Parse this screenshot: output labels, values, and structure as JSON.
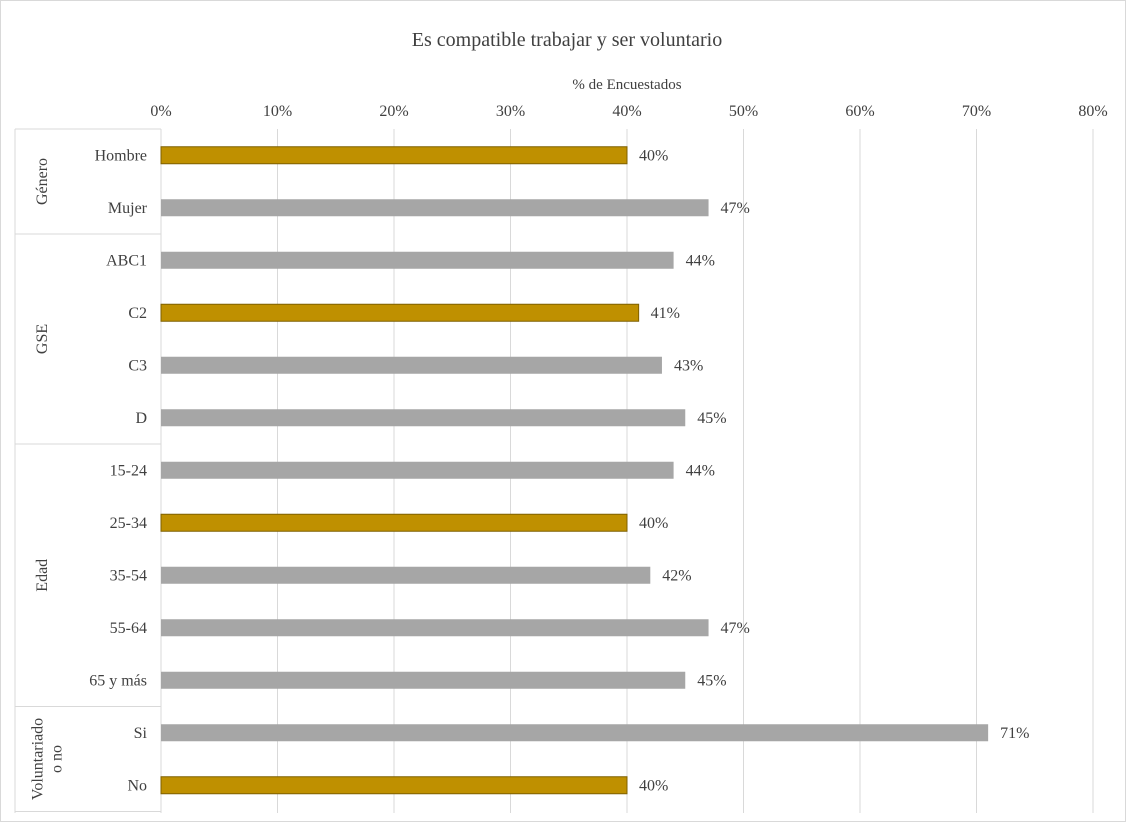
{
  "chart_data": {
    "type": "bar",
    "orientation": "horizontal",
    "title": "Es compatible trabajar y ser voluntario",
    "xlabel": "% de Encuestados",
    "xlim": [
      0,
      80
    ],
    "x_ticks": [
      "0%",
      "10%",
      "20%",
      "30%",
      "40%",
      "50%",
      "60%",
      "70%",
      "80%"
    ],
    "x_axis_position": "top",
    "grid": true,
    "legend": "none",
    "colors": {
      "highlight": "#bf9000",
      "default": "#a6a6a6"
    },
    "groups": [
      {
        "label": "Género",
        "items": [
          {
            "category": "Hombre",
            "value": 40,
            "label": "40%",
            "highlight": true
          },
          {
            "category": "Mujer",
            "value": 47,
            "label": "47%",
            "highlight": false
          }
        ]
      },
      {
        "label": "GSE",
        "items": [
          {
            "category": "ABC1",
            "value": 44,
            "label": "44%",
            "highlight": false
          },
          {
            "category": "C2",
            "value": 41,
            "label": "41%",
            "highlight": true
          },
          {
            "category": "C3",
            "value": 43,
            "label": "43%",
            "highlight": false
          },
          {
            "category": "D",
            "value": 45,
            "label": "45%",
            "highlight": false
          }
        ]
      },
      {
        "label": "Edad",
        "items": [
          {
            "category": "15-24",
            "value": 44,
            "label": "44%",
            "highlight": false
          },
          {
            "category": "25-34",
            "value": 40,
            "label": "40%",
            "highlight": true
          },
          {
            "category": "35-54",
            "value": 42,
            "label": "42%",
            "highlight": false
          },
          {
            "category": "55-64",
            "value": 47,
            "label": "47%",
            "highlight": false
          },
          {
            "category": "65 y más",
            "value": 45,
            "label": "45%",
            "highlight": false
          }
        ]
      },
      {
        "label": "Voluntariado o no",
        "label_lines": [
          "Voluntariado",
          "o no"
        ],
        "items": [
          {
            "category": "Si",
            "value": 71,
            "label": "71%",
            "highlight": false
          },
          {
            "category": "No",
            "value": 40,
            "label": "40%",
            "highlight": true
          }
        ]
      }
    ]
  }
}
